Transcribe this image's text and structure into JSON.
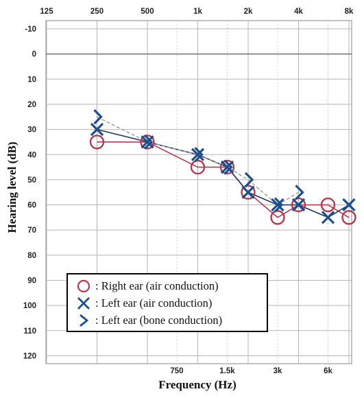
{
  "chart_data": {
    "type": "line",
    "xlabel": "Frequency (Hz)",
    "ylabel": "Hearing level (dB)",
    "x_scale": "log",
    "xlim": [
      125,
      8000
    ],
    "ylim": [
      -10,
      120
    ],
    "y_inverted": true,
    "grid": true,
    "legend_placement": "bottom-left",
    "x_ticks_top": [
      {
        "value": 125,
        "label": "125"
      },
      {
        "value": 250,
        "label": "250"
      },
      {
        "value": 500,
        "label": "500"
      },
      {
        "value": 1000,
        "label": "1k"
      },
      {
        "value": 2000,
        "label": "2k"
      },
      {
        "value": 4000,
        "label": "4k"
      },
      {
        "value": 8000,
        "label": "8k"
      }
    ],
    "x_ticks_bottom": [
      {
        "value": 750,
        "label": "750"
      },
      {
        "value": 1500,
        "label": "1.5k"
      },
      {
        "value": 3000,
        "label": "3k"
      },
      {
        "value": 6000,
        "label": "6k"
      }
    ],
    "y_ticks": [
      -10,
      0,
      10,
      20,
      30,
      40,
      50,
      60,
      70,
      80,
      90,
      100,
      110,
      120
    ],
    "series": [
      {
        "name": ": Right ear (air conduction)",
        "marker": "circle",
        "color": "#b03a4e",
        "line_color": "#b03a4e",
        "points": [
          {
            "x": 250,
            "y": 35
          },
          {
            "x": 500,
            "y": 35
          },
          {
            "x": 1000,
            "y": 45
          },
          {
            "x": 1500,
            "y": 45
          },
          {
            "x": 2000,
            "y": 55
          },
          {
            "x": 3000,
            "y": 65
          },
          {
            "x": 4000,
            "y": 60
          },
          {
            "x": 6000,
            "y": 60
          },
          {
            "x": 8000,
            "y": 65
          }
        ]
      },
      {
        "name": ": Left ear (air conduction)",
        "marker": "x",
        "color": "#1f4e8c",
        "line_color": "#1f3560",
        "points": [
          {
            "x": 250,
            "y": 30
          },
          {
            "x": 500,
            "y": 35
          },
          {
            "x": 1000,
            "y": 40
          },
          {
            "x": 1500,
            "y": 45
          },
          {
            "x": 2000,
            "y": 55
          },
          {
            "x": 3000,
            "y": 60
          },
          {
            "x": 4000,
            "y": 60
          },
          {
            "x": 6000,
            "y": 65
          },
          {
            "x": 8000,
            "y": 60
          }
        ]
      },
      {
        "name": ": Left ear (bone conduction)",
        "marker": "bracket-right",
        "color": "#1f4e8c",
        "line_color": "#999999",
        "line_dash": true,
        "points": [
          {
            "x": 250,
            "y": 25
          },
          {
            "x": 500,
            "y": 35
          },
          {
            "x": 1000,
            "y": 40
          },
          {
            "x": 1500,
            "y": 45
          },
          {
            "x": 2000,
            "y": 50
          },
          {
            "x": 3000,
            "y": 60
          },
          {
            "x": 4000,
            "y": 55
          }
        ]
      }
    ]
  }
}
